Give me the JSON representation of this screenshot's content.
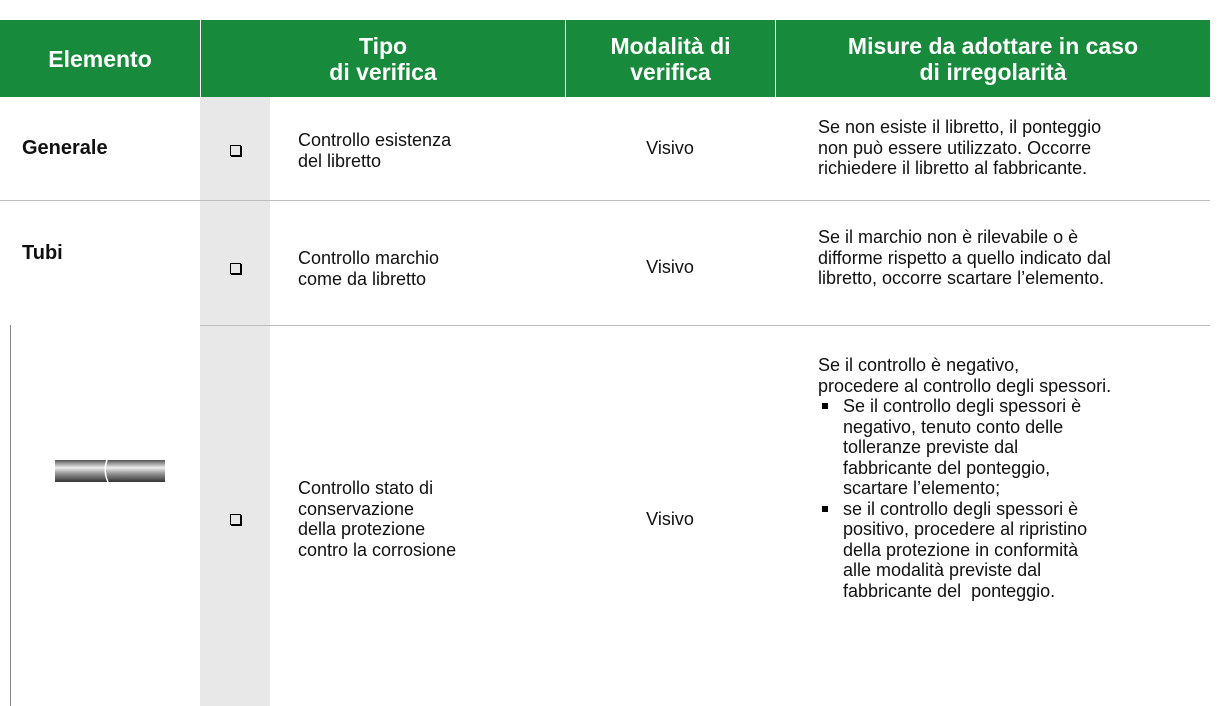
{
  "header": {
    "columns": [
      [
        "Elemento"
      ],
      [
        "Tipo",
        "di verifica"
      ],
      [
        "Modalità di",
        "verifica"
      ],
      [
        "Misure da adottare in caso",
        "di irregolarità"
      ]
    ]
  },
  "rows": [
    {
      "element": "Generale",
      "check": [
        "Controllo esistenza",
        "del libretto"
      ],
      "mode": "Visivo",
      "measures": [
        "Se non esiste il libretto, il ponteggio",
        "non può essere utilizzato. Occorre",
        "richiedere il libretto al fabbricante."
      ]
    },
    {
      "element": "Tubi",
      "check": [
        "Controllo marchio",
        "come da libretto"
      ],
      "mode": "Visivo",
      "measures": [
        "Se il marchio non è rilevabile o è",
        "difforme rispetto a quello indicato dal",
        "libretto, occorre scartare l’elemento."
      ]
    },
    {
      "check": [
        "Controllo stato di",
        "conservazione",
        "della protezione",
        "contro la corrosione"
      ],
      "mode": "Visivo",
      "measures_intro": [
        "Se il controllo è negativo,",
        "procedere al controllo degli spessori."
      ],
      "measures_items": [
        [
          "Se il controllo degli spessori è",
          "negativo, tenuto conto delle",
          "tolleranze previste dal",
          "fabbricante del ponteggio,",
          "scartare l’elemento;"
        ],
        [
          "se il controllo degli spessori è",
          "positivo, procedere al ripristino",
          "della protezione in conformità",
          "alle modalità previste dal",
          "fabbricante del  ponteggio."
        ]
      ]
    }
  ]
}
